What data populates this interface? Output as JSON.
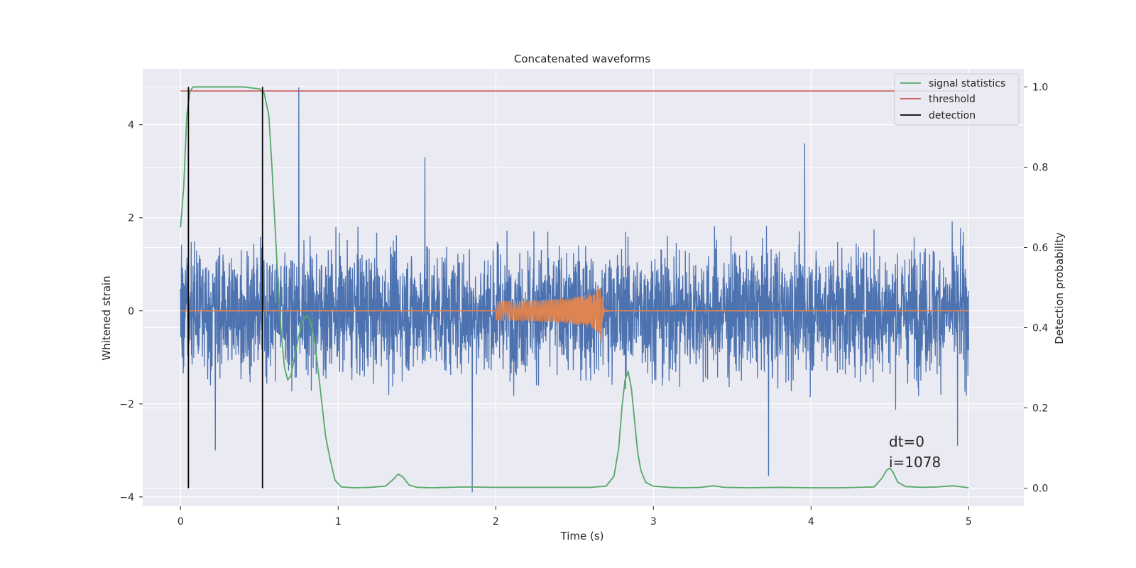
{
  "chart_data": {
    "type": "line",
    "title": "Concatenated waveforms",
    "xlabel": "Time (s)",
    "ylabel_left": "Whitened strain",
    "ylabel_right": "Detection probability",
    "xlim": [
      -0.24,
      5.35
    ],
    "ylim_left": [
      -4.2,
      5.2
    ],
    "ylim_right": [
      -0.045,
      1.045
    ],
    "x_ticks": [
      0,
      1,
      2,
      3,
      4,
      5
    ],
    "y_ticks_left": [
      -4,
      -2,
      0,
      2,
      4
    ],
    "y_ticks_left_labels": [
      "−4",
      "−2",
      "0",
      "2",
      "4"
    ],
    "y_ticks_right": [
      0.0,
      0.2,
      0.4,
      0.6,
      0.8,
      1.0
    ],
    "y_ticks_right_labels": [
      "0.0",
      "0.2",
      "0.4",
      "0.6",
      "0.8",
      "1.0"
    ],
    "grid": true,
    "legend_position": "top-right",
    "annotation": [
      "dt=0",
      "i=1078"
    ],
    "strain_noise": {
      "color": "#4c72b0",
      "x_range": [
        0,
        5
      ],
      "spikes": [
        {
          "x": 0.75,
          "y": 4.8
        },
        {
          "x": 3.96,
          "y": 3.6
        },
        {
          "x": 1.85,
          "y": -3.9
        },
        {
          "x": 3.73,
          "y": -3.55
        },
        {
          "x": 0.22,
          "y": -3.0
        },
        {
          "x": 1.55,
          "y": 3.3
        },
        {
          "x": 4.93,
          "y": -2.9
        }
      ]
    },
    "injected_waveform": {
      "color": "#dd8452",
      "x_start": 2.0,
      "x_merger": 2.67,
      "peak_amplitude": 0.75
    },
    "series": [
      {
        "name": "signal statistics",
        "axis": "right",
        "color": "#55a868",
        "x": [
          0,
          0.02,
          0.04,
          0.06,
          0.08,
          0.12,
          0.2,
          0.3,
          0.4,
          0.5,
          0.53,
          0.56,
          0.58,
          0.6,
          0.62,
          0.64,
          0.66,
          0.68,
          0.7,
          0.72,
          0.75,
          0.78,
          0.8,
          0.82,
          0.85,
          0.88,
          0.9,
          0.92,
          0.95,
          0.98,
          1.02,
          1.1,
          1.2,
          1.3,
          1.35,
          1.38,
          1.41,
          1.45,
          1.5,
          1.6,
          1.8,
          2.0,
          2.2,
          2.4,
          2.6,
          2.7,
          2.75,
          2.78,
          2.8,
          2.82,
          2.84,
          2.86,
          2.88,
          2.9,
          2.92,
          2.95,
          3.0,
          3.1,
          3.2,
          3.3,
          3.38,
          3.45,
          3.6,
          3.8,
          4.0,
          4.2,
          4.4,
          4.45,
          4.48,
          4.5,
          4.52,
          4.55,
          4.6,
          4.7,
          4.8,
          4.9,
          5.0
        ],
        "y": [
          0.65,
          0.75,
          0.93,
          0.99,
          1.0,
          1.0,
          1.0,
          1.0,
          1.0,
          0.995,
          0.985,
          0.93,
          0.8,
          0.65,
          0.5,
          0.38,
          0.3,
          0.27,
          0.28,
          0.32,
          0.38,
          0.42,
          0.43,
          0.42,
          0.37,
          0.27,
          0.2,
          0.13,
          0.07,
          0.02,
          0.003,
          0.001,
          0.002,
          0.005,
          0.022,
          0.035,
          0.028,
          0.008,
          0.002,
          0.001,
          0.003,
          0.002,
          0.002,
          0.002,
          0.002,
          0.005,
          0.03,
          0.1,
          0.2,
          0.27,
          0.29,
          0.25,
          0.17,
          0.09,
          0.045,
          0.015,
          0.005,
          0.002,
          0.001,
          0.002,
          0.006,
          0.002,
          0.001,
          0.002,
          0.001,
          0.001,
          0.003,
          0.025,
          0.045,
          0.05,
          0.04,
          0.015,
          0.004,
          0.002,
          0.003,
          0.006,
          0.001
        ]
      },
      {
        "name": "threshold",
        "axis": "right",
        "color": "#c44e52",
        "x": [
          0,
          5
        ],
        "y": [
          0.99,
          0.99
        ]
      },
      {
        "name": "detection",
        "axis": "right",
        "color": "#000000",
        "segments": [
          {
            "x": 0.05,
            "y": [
              0.0,
              1.0
            ]
          },
          {
            "x": 0.52,
            "y": [
              0.0,
              1.0
            ]
          }
        ]
      }
    ]
  }
}
